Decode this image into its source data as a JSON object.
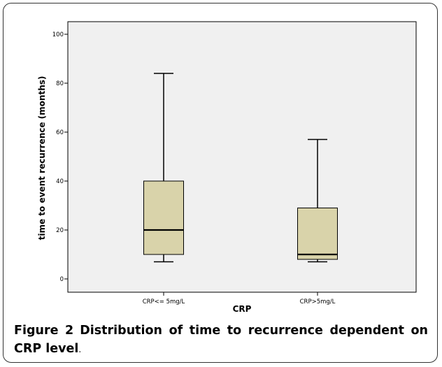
{
  "chart_data": {
    "type": "boxplot",
    "title": "",
    "xlabel": "CRP",
    "ylabel": "time to event recurrence (months)",
    "ylim": [
      -5,
      103
    ],
    "yticks": [
      0,
      20,
      40,
      60,
      80,
      100
    ],
    "categories": [
      "CRP<= 5mg/L",
      "CRP>5mg/L"
    ],
    "boxes": [
      {
        "category": "CRP<= 5mg/L",
        "min": 7,
        "q1": 10,
        "median": 20,
        "q3": 40,
        "max": 84
      },
      {
        "category": "CRP>5mg/L",
        "min": 7,
        "q1": 8,
        "median": 10,
        "q3": 29,
        "max": 57
      }
    ],
    "colors": {
      "plot_bg": "#f0f0f0",
      "box_fill": "#d9d3aa",
      "stroke": "#000000"
    },
    "grid": false,
    "legend": "none"
  },
  "caption": {
    "label": "Figure 2",
    "text": "Distribution of time to recurrence dependent on CRP level",
    "end": "."
  }
}
